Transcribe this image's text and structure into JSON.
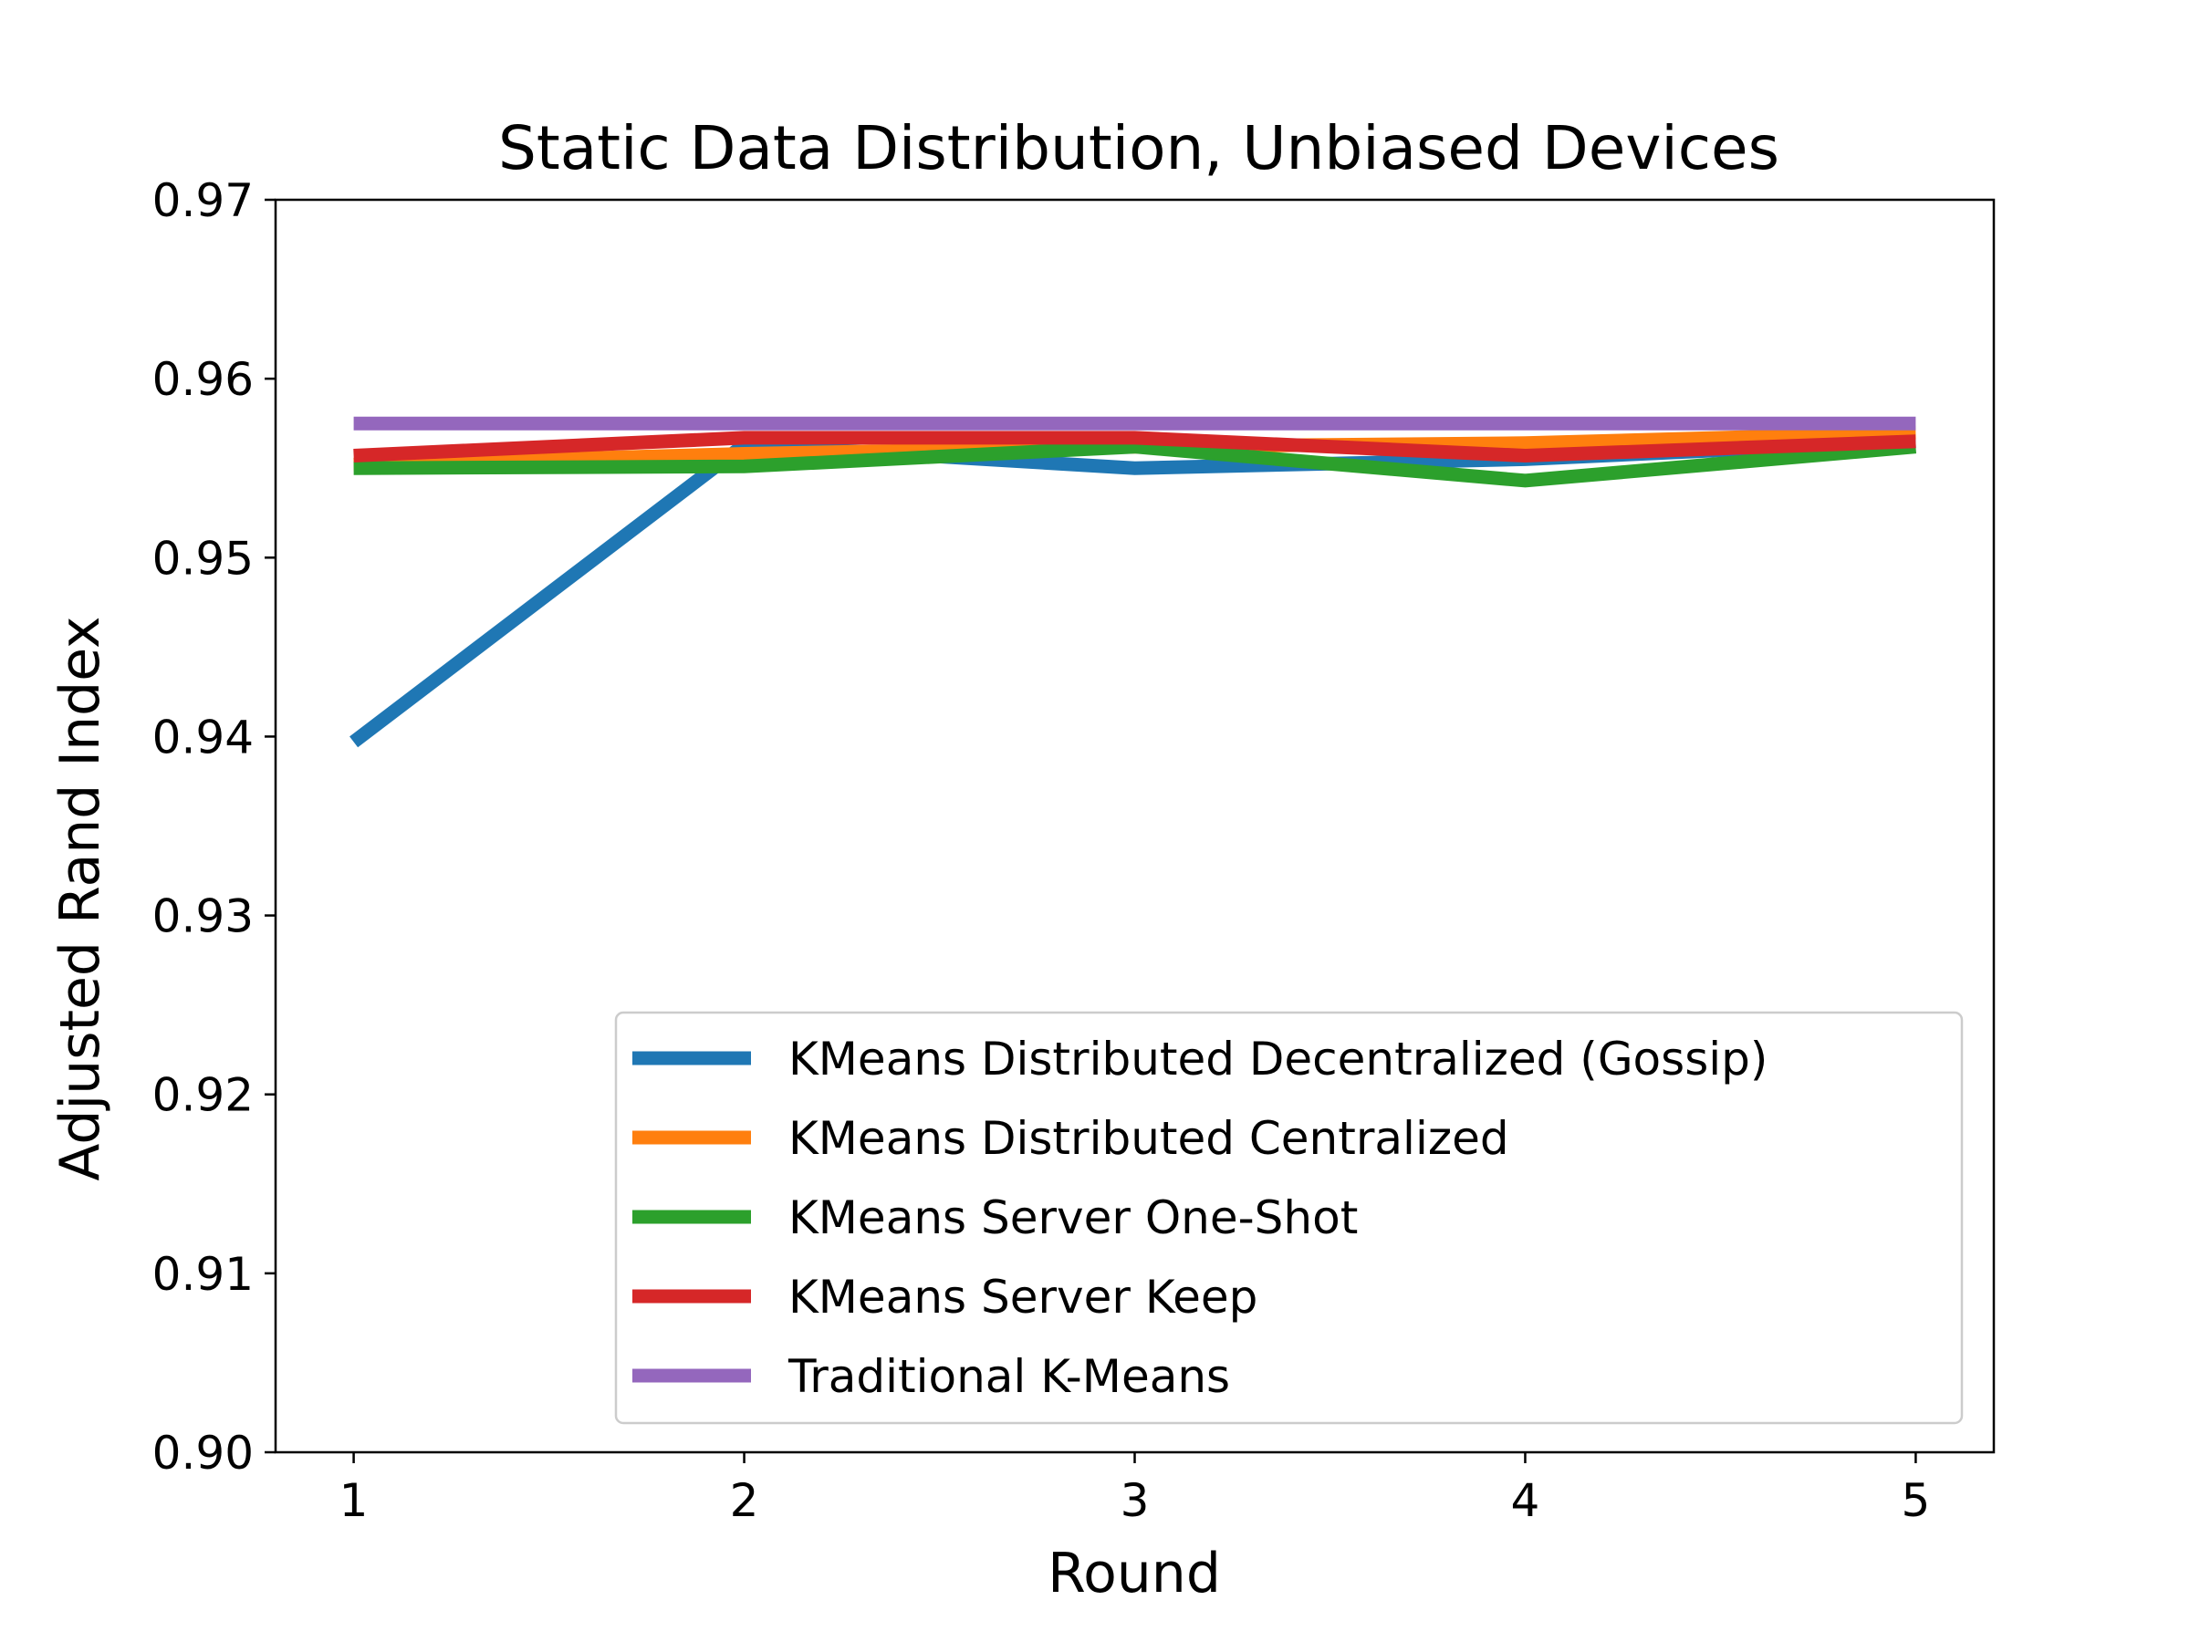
{
  "chart_data": {
    "type": "line",
    "title": "Static Data Distribution, Unbiased Devices",
    "xlabel": "Round",
    "ylabel": "Adjusted Rand Index",
    "x": [
      1,
      2,
      3,
      4,
      5
    ],
    "xlim": [
      0.8,
      5.2
    ],
    "ylim": [
      0.9,
      0.97
    ],
    "xticks": [
      "1",
      "2",
      "3",
      "4",
      "5"
    ],
    "yticks": [
      "0.90",
      "0.91",
      "0.92",
      "0.93",
      "0.94",
      "0.95",
      "0.96",
      "0.97"
    ],
    "grid": false,
    "legend_position": "lower-right",
    "series": [
      {
        "name": "KMeans Distributed Decentralized (Gossip)",
        "color": "#1f77b4",
        "values": [
          0.9397,
          0.9563,
          0.955,
          0.9555,
          0.9565
        ]
      },
      {
        "name": "KMeans Distributed Centralized",
        "color": "#ff7f0e",
        "values": [
          0.9552,
          0.9558,
          0.9562,
          0.9564,
          0.957
        ]
      },
      {
        "name": "KMeans Server One-Shot",
        "color": "#2ca02c",
        "values": [
          0.955,
          0.9551,
          0.9562,
          0.9543,
          0.9562
        ]
      },
      {
        "name": "KMeans Server Keep",
        "color": "#d62728",
        "values": [
          0.9557,
          0.9567,
          0.9567,
          0.9557,
          0.9565
        ]
      },
      {
        "name": "Traditional K-Means",
        "color": "#9467bd",
        "values": [
          0.9575,
          0.9575,
          0.9575,
          0.9575,
          0.9575
        ]
      }
    ]
  }
}
